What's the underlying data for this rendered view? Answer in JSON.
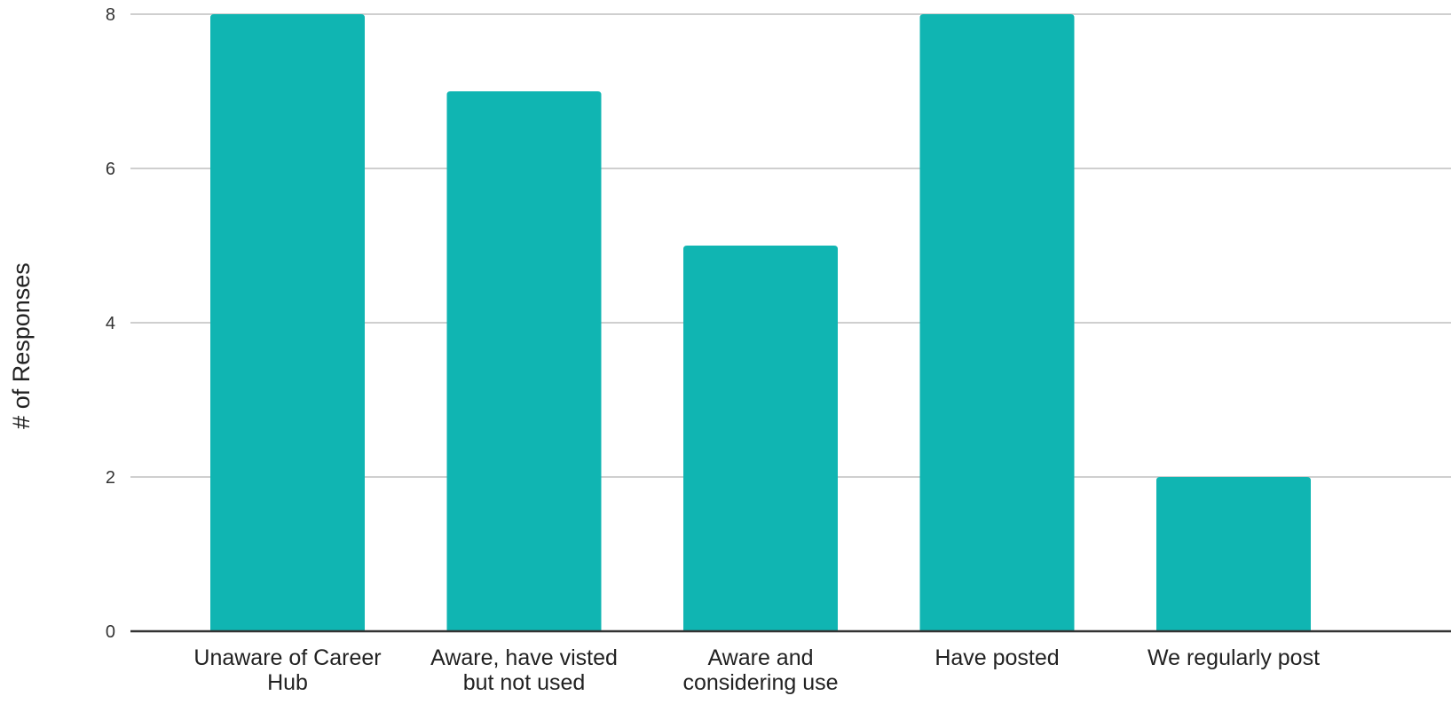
{
  "chart_data": {
    "type": "bar",
    "categories": [
      [
        "Unaware of Career",
        "Hub"
      ],
      [
        "Aware, have visted",
        "but not used"
      ],
      [
        "Aware and",
        "considering use"
      ],
      [
        "Have posted"
      ],
      [
        "We regularly post"
      ]
    ],
    "values": [
      8,
      7,
      5,
      8,
      2
    ],
    "ylabel": "# of  Responses",
    "ylim": [
      0,
      8
    ],
    "yticks": [
      0,
      2,
      4,
      6,
      8
    ],
    "grid": true,
    "bar_color": "#10b5b2"
  }
}
